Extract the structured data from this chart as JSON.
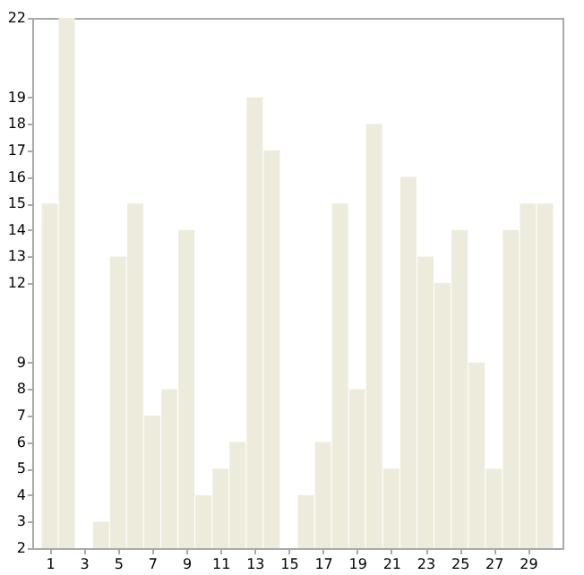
{
  "chart_data": {
    "type": "bar",
    "x": [
      1,
      2,
      3,
      4,
      5,
      6,
      7,
      8,
      9,
      10,
      11,
      12,
      13,
      14,
      15,
      16,
      17,
      18,
      19,
      20,
      21,
      22,
      23,
      24,
      25,
      26,
      27,
      28,
      29,
      30
    ],
    "values": [
      15,
      22,
      2,
      3,
      13,
      15,
      7,
      8,
      14,
      4,
      5,
      6,
      19,
      17,
      2,
      4,
      6,
      15,
      8,
      18,
      5,
      16,
      13,
      12,
      14,
      9,
      5,
      14,
      15,
      15
    ],
    "color": "#edecdc",
    "xlim": [
      0.5,
      30.5
    ],
    "xticks": [
      1,
      3,
      5,
      7,
      9,
      11,
      13,
      15,
      17,
      19,
      21,
      23,
      25,
      27,
      29
    ],
    "ylim": [
      2,
      22
    ],
    "yticks": [
      2,
      3,
      4,
      5,
      6,
      7,
      8,
      9,
      12,
      13,
      14,
      15,
      16,
      17,
      18,
      19,
      22
    ],
    "grid": false
  }
}
